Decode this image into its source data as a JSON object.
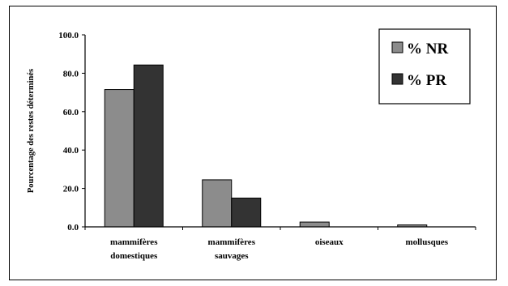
{
  "chart_data": {
    "type": "bar",
    "title": "",
    "xlabel": "",
    "ylabel": "Pourcentage des restes déterminés",
    "ylim": [
      0,
      100
    ],
    "yticks": [
      "0.0",
      "20.0",
      "40.0",
      "60.0",
      "80.0",
      "100.0"
    ],
    "ytick_values": [
      0,
      20,
      40,
      60,
      80,
      100
    ],
    "categories": [
      [
        "mammifères",
        "domestiques"
      ],
      [
        "mammifères",
        "sauvages"
      ],
      [
        "oiseaux"
      ],
      [
        "mollusques"
      ]
    ],
    "series": [
      {
        "name": "% NR",
        "values": [
          71.5,
          24.5,
          2.5,
          1.0
        ],
        "color": "#8c8c8c"
      },
      {
        "name": "% PR",
        "values": [
          84.3,
          15.0,
          0.0,
          0.0
        ],
        "color": "#333333"
      }
    ],
    "grid": false,
    "legend": "top-right"
  }
}
